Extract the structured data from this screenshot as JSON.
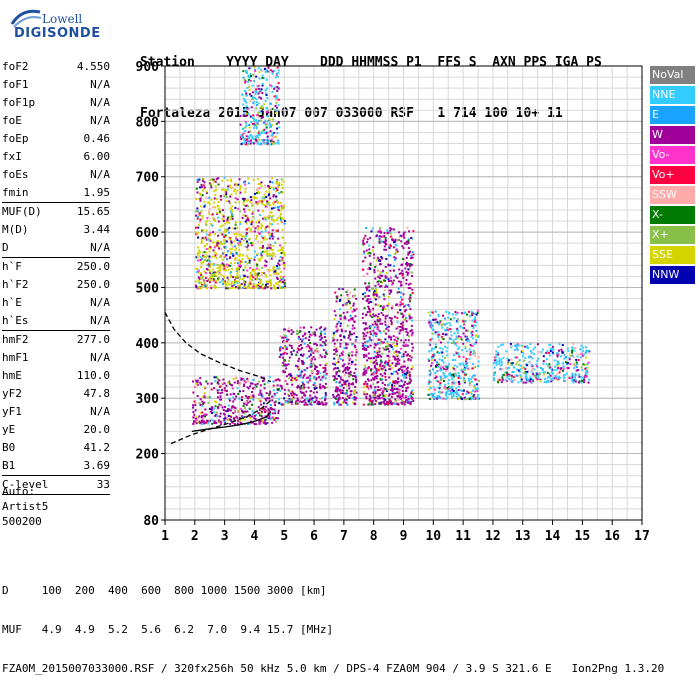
{
  "logo": {
    "line1": "Lowell",
    "line2": "DIGISONDE"
  },
  "header": {
    "labels": "Station    YYYY DAY    DDD HHMMSS P1  FFS S  AXN PPS IGA PS",
    "values": "Fortaleza 2015 Jan07 007 033000 RSF   1 714 100 10+ 11"
  },
  "params_groups": [
    [
      {
        "k": "foF2",
        "v": "4.550"
      },
      {
        "k": "foF1",
        "v": "N/A"
      },
      {
        "k": "foF1p",
        "v": "N/A"
      },
      {
        "k": "foE",
        "v": "N/A"
      },
      {
        "k": "foEp",
        "v": "0.46"
      },
      {
        "k": "fxI",
        "v": "6.00"
      },
      {
        "k": "foEs",
        "v": "N/A"
      },
      {
        "k": "fmin",
        "v": "1.95"
      }
    ],
    [
      {
        "k": "MUF(D)",
        "v": "15.65"
      },
      {
        "k": "M(D)",
        "v": "3.44"
      },
      {
        "k": "D",
        "v": "N/A"
      }
    ],
    [
      {
        "k": "h`F",
        "v": "250.0"
      },
      {
        "k": "h`F2",
        "v": "250.0"
      },
      {
        "k": "h`E",
        "v": "N/A"
      },
      {
        "k": "h`Es",
        "v": "N/A"
      }
    ],
    [
      {
        "k": "hmF2",
        "v": "277.0"
      },
      {
        "k": "hmF1",
        "v": "N/A"
      },
      {
        "k": "hmE",
        "v": "110.0"
      },
      {
        "k": "yF2",
        "v": "47.8"
      },
      {
        "k": "yF1",
        "v": "N/A"
      },
      {
        "k": "yE",
        "v": "20.0"
      },
      {
        "k": "B0",
        "v": "41.2"
      },
      {
        "k": "B1",
        "v": "3.69"
      }
    ],
    [
      {
        "k": "C-level",
        "v": "33"
      }
    ]
  ],
  "auto": {
    "line1": "Auto:",
    "line2": "Artist5",
    "line3": "500200"
  },
  "bottom": {
    "d_row": "D     100  200  400  600  800 1000 1500 3000 [km]",
    "muf_row": "MUF   4.9  4.9  5.2  5.6  6.2  7.0  9.4 15.7 [MHz]",
    "file_row": "FZA0M_2015007033000.RSF / 320fx256h 50 kHz 5.0 km / DPS-4 FZA0M 904 / 3.9 S 321.6 E   Ion2Png 1.3.20"
  },
  "legend": [
    {
      "label": "NoVal",
      "color": "#808080"
    },
    {
      "label": "NNE",
      "color": "#33ccff"
    },
    {
      "label": "E",
      "color": "#1aa3ff"
    },
    {
      "label": "W",
      "color": "#a0009a"
    },
    {
      "label": "Vo-",
      "color": "#ff33cc"
    },
    {
      "label": "Vo+",
      "color": "#ff0040"
    },
    {
      "label": "SSW",
      "color": "#ffaaaa"
    },
    {
      "label": "X-",
      "color": "#007a00"
    },
    {
      "label": "X+",
      "color": "#88c04a"
    },
    {
      "label": "SSE",
      "color": "#d4d400"
    },
    {
      "label": "NNW",
      "color": "#0000b0"
    }
  ],
  "chart_data": {
    "type": "scatter",
    "title": "",
    "xlabel": "",
    "ylabel": "",
    "xlim": [
      1,
      17
    ],
    "ylim": [
      80,
      900
    ],
    "x_ticks": [
      1,
      2,
      3,
      4,
      5,
      6,
      7,
      8,
      9,
      10,
      11,
      12,
      13,
      14,
      15,
      16,
      17
    ],
    "y_ticks": [
      80,
      200,
      300,
      400,
      500,
      600,
      700,
      800,
      900
    ],
    "grid": true,
    "clusters": [
      {
        "name": "F2 low band",
        "x_range": [
          1.9,
          4.8
        ],
        "h_range": [
          255,
          340
        ],
        "color": "W"
      },
      {
        "name": "F2 main",
        "x_range": [
          4.8,
          6.4
        ],
        "h_range": [
          290,
          430
        ],
        "color": "W"
      },
      {
        "name": "F2 spread 7",
        "x_range": [
          6.6,
          7.4
        ],
        "h_range": [
          290,
          500
        ],
        "color": "W"
      },
      {
        "name": "F2 spread 8",
        "x_range": [
          7.6,
          9.3
        ],
        "h_range": [
          290,
          610
        ],
        "color": "W"
      },
      {
        "name": "F2 spread 10",
        "x_range": [
          9.8,
          11.5
        ],
        "h_range": [
          300,
          460
        ],
        "color": "NNE"
      },
      {
        "name": "F2 tail",
        "x_range": [
          12.0,
          15.2
        ],
        "h_range": [
          330,
          400
        ],
        "color": "NNE"
      },
      {
        "name": "Multiple 2F",
        "x_range": [
          2.0,
          5.0
        ],
        "h_range": [
          500,
          700
        ],
        "color": "SSE"
      },
      {
        "name": "Multiple 3F",
        "x_range": [
          3.5,
          4.8
        ],
        "h_range": [
          760,
          900
        ],
        "color": "NNE"
      }
    ],
    "trace_solid": [
      [
        1.9,
        240
      ],
      [
        2.4,
        244
      ],
      [
        3.0,
        248
      ],
      [
        3.5,
        252
      ],
      [
        4.0,
        258
      ],
      [
        4.4,
        266
      ],
      [
        4.55,
        276
      ]
    ],
    "trace_dashed": [
      [
        1.2,
        218
      ],
      [
        1.9,
        234
      ],
      [
        2.6,
        246
      ],
      [
        3.2,
        256
      ],
      [
        3.8,
        268
      ],
      [
        4.2,
        280
      ],
      [
        4.55,
        296
      ]
    ],
    "profile_dashed": [
      [
        1.0,
        455
      ],
      [
        1.3,
        425
      ],
      [
        1.7,
        400
      ],
      [
        2.2,
        380
      ],
      [
        2.8,
        365
      ],
      [
        3.5,
        350
      ],
      [
        4.1,
        340
      ],
      [
        4.55,
        330
      ]
    ]
  }
}
